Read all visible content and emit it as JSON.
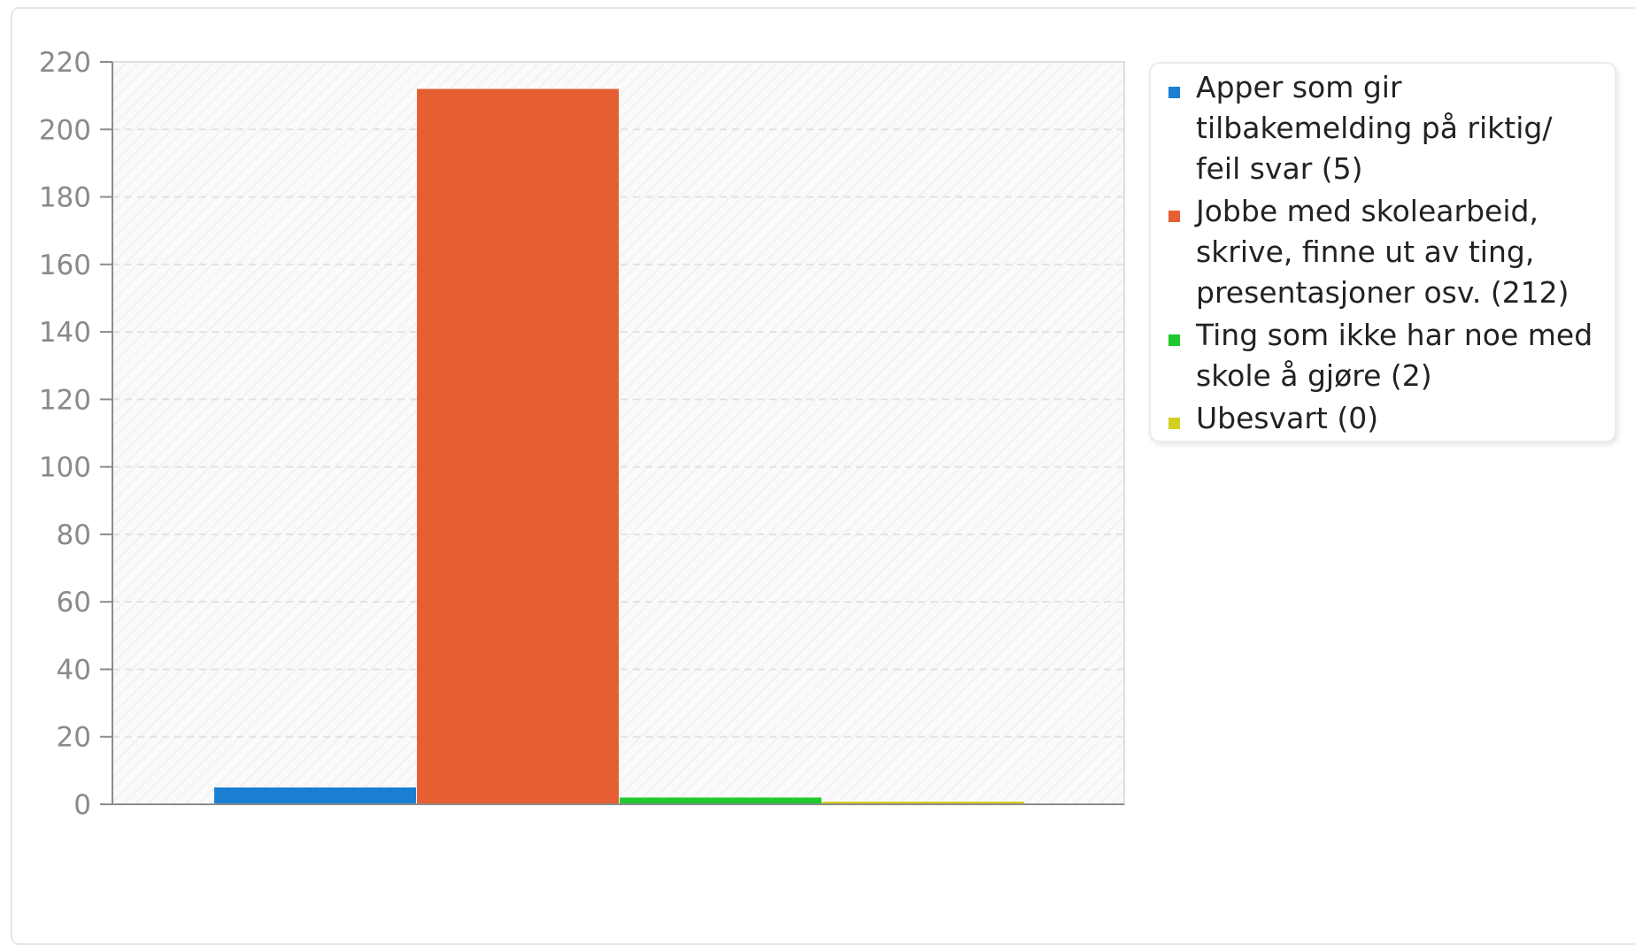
{
  "chart_data": {
    "type": "bar",
    "categories": [
      "Apper som gir tilbakemelding på riktig/ feil svar (5)",
      "Jobbe med skolearbeid, skrive, finne ut av ting, presentasjoner osv. (212)",
      "Ting som ikke har noe med skole å gjøre (2)",
      "Ubesvart (0)"
    ],
    "values": [
      5,
      212,
      2,
      0
    ],
    "colors": [
      "#1a7fd1",
      "#e65f32",
      "#1ec82d",
      "#d4cf1e"
    ],
    "ylim": [
      0,
      220
    ],
    "yticks": [
      "0",
      "20",
      "40",
      "60",
      "80",
      "100",
      "120",
      "140",
      "160",
      "180",
      "200",
      "220"
    ],
    "grid": true,
    "legend_position": "right",
    "title": "",
    "xlabel": "",
    "ylabel": ""
  }
}
